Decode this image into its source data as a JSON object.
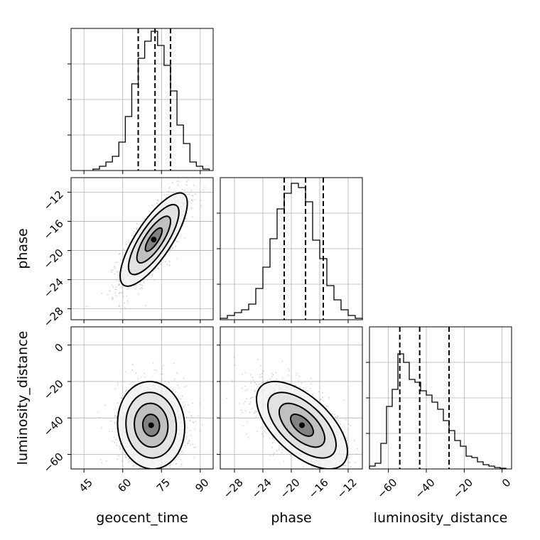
{
  "chart_data": {
    "type": "corner",
    "parameters": [
      "geocent_time",
      "phase",
      "luminosity_distance"
    ],
    "grid": true,
    "colors": {
      "line": "#000000",
      "grid": "#b0b0b0",
      "points": "#9a9a9a"
    },
    "histograms": [
      {
        "param": "geocent_time",
        "xlim": [
          40,
          95
        ],
        "ymax": 1.0,
        "bin_edges": [
          48.5,
          51,
          53.5,
          56,
          58.5,
          61,
          63.5,
          66,
          68.5,
          71,
          73.5,
          76,
          78.5,
          81,
          83.5,
          86,
          88.5,
          91,
          93.5
        ],
        "counts": [
          0.01,
          0.03,
          0.06,
          0.1,
          0.2,
          0.38,
          0.61,
          0.79,
          0.91,
          0.98,
          0.88,
          0.74,
          0.56,
          0.32,
          0.19,
          0.06,
          0.03,
          0.01
        ],
        "quantiles": [
          66,
          72.5,
          78.5
        ]
      },
      {
        "param": "phase",
        "xlim": [
          -30,
          -10
        ],
        "ymax": 1.0,
        "bin_edges": [
          -30,
          -29,
          -28,
          -27,
          -26,
          -25,
          -24,
          -23,
          -22,
          -21,
          -20,
          -19,
          -18,
          -17,
          -16,
          -15,
          -14,
          -13,
          -12,
          -11,
          -10
        ],
        "counts": [
          0.01,
          0.03,
          0.05,
          0.07,
          0.11,
          0.22,
          0.37,
          0.57,
          0.78,
          0.89,
          0.96,
          0.93,
          0.83,
          0.56,
          0.43,
          0.24,
          0.14,
          0.07,
          0.03,
          0.01
        ],
        "quantiles": [
          -21,
          -18,
          -15.5
        ]
      },
      {
        "param": "luminosity_distance",
        "xlim": [
          -70,
          5
        ],
        "ymax": 1.0,
        "bin_edges": [
          -70,
          -67,
          -64,
          -61,
          -58,
          -55,
          -52,
          -49,
          -46,
          -43,
          -40,
          -37,
          -34,
          -31,
          -28,
          -25,
          -22,
          -19,
          -16,
          -13,
          -10,
          -7,
          -4,
          -1,
          2
        ],
        "counts": [
          0.02,
          0.04,
          0.18,
          0.44,
          0.56,
          0.81,
          0.75,
          0.63,
          0.61,
          0.55,
          0.52,
          0.47,
          0.42,
          0.34,
          0.27,
          0.2,
          0.16,
          0.09,
          0.08,
          0.05,
          0.03,
          0.02,
          0.01,
          0.005
        ],
        "quantiles": [
          -54,
          -43.5,
          -28
        ]
      }
    ],
    "panels_2d": [
      {
        "x": "geocent_time",
        "y": "phase",
        "xlim": [
          40,
          95
        ],
        "ylim": [
          -29.5,
          -10
        ],
        "mean": [
          72,
          -18.5
        ],
        "sd": [
          6.5,
          3.2
        ],
        "rho": 0.78
      },
      {
        "x": "geocent_time",
        "y": "luminosity_distance",
        "xlim": [
          40,
          95
        ],
        "ylim": [
          -68,
          10
        ],
        "mean": [
          71,
          -44
        ],
        "sd": [
          6.5,
          12
        ],
        "rho": -0.05
      },
      {
        "x": "phase",
        "y": "luminosity_distance",
        "xlim": [
          -30,
          -10
        ],
        "ylim": [
          -68,
          10
        ],
        "mean": [
          -18.5,
          -44
        ],
        "sd": [
          3.2,
          12
        ],
        "rho": -0.6
      }
    ],
    "axes": {
      "geocent_time": {
        "ticks": [
          45,
          60,
          75,
          90
        ],
        "tick_labels": [
          "45",
          "60",
          "75",
          "90"
        ]
      },
      "phase": {
        "ticks": [
          -28,
          -24,
          -20,
          -16,
          -12
        ],
        "tick_labels": [
          "−28",
          "−24",
          "−20",
          "−16",
          "−12"
        ]
      },
      "luminosity_distance": {
        "ticks": [
          -60,
          -40,
          -20,
          0
        ],
        "tick_labels": [
          "−60",
          "−40",
          "−20",
          "0"
        ]
      }
    },
    "labels": {
      "x": [
        "geocent_time",
        "phase",
        "luminosity_distance"
      ],
      "y": [
        "phase",
        "luminosity_distance"
      ]
    }
  }
}
